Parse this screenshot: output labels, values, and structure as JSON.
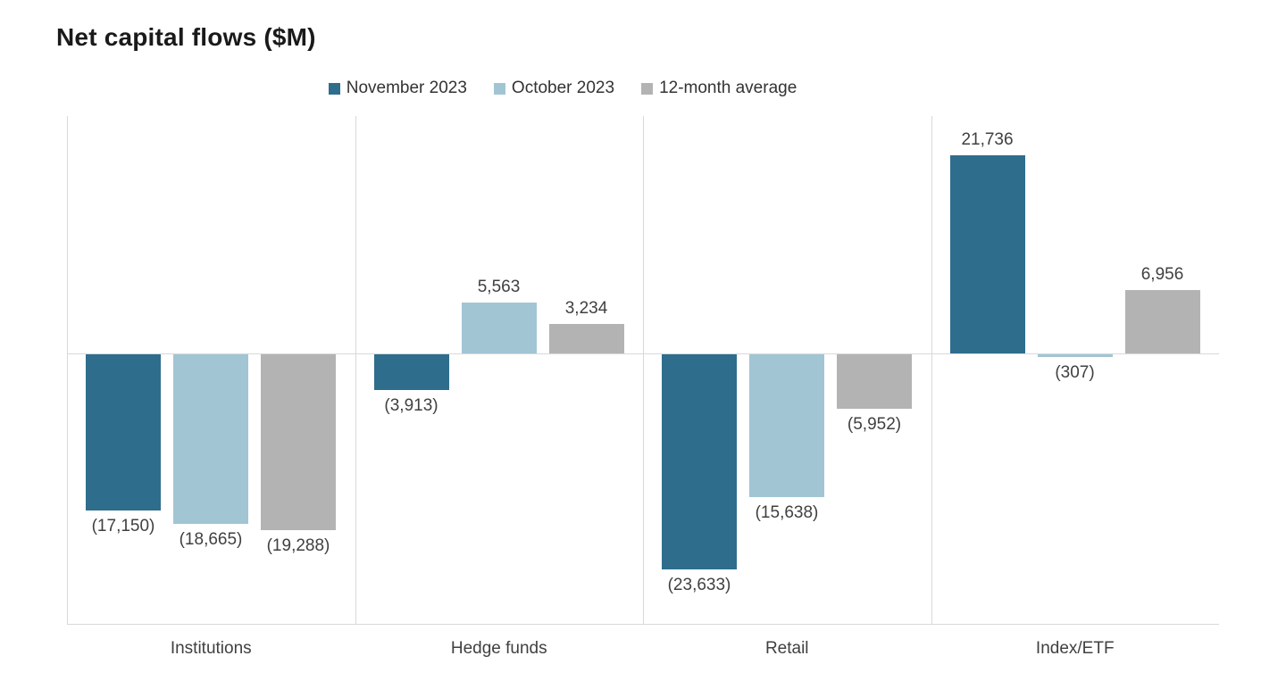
{
  "title": "Net capital flows ($M)",
  "chart_data": {
    "type": "bar",
    "title": "Net capital flows ($M)",
    "categories": [
      "Institutions",
      "Hedge funds",
      "Retail",
      "Index/ETF"
    ],
    "series": [
      {
        "name": "November 2023",
        "color": "#2e6d8c",
        "values": [
          -17150,
          -3913,
          -23633,
          21736
        ],
        "labels": [
          "(17,150)",
          "(3,913)",
          "(23,633)",
          "21,736"
        ]
      },
      {
        "name": "October 2023",
        "color": "#a2c5d3",
        "values": [
          -18665,
          5563,
          -15638,
          -307
        ],
        "labels": [
          "(18,665)",
          "5,563",
          "(15,638)",
          "(307)"
        ]
      },
      {
        "name": "12-month average",
        "color": "#b3b3b3",
        "values": [
          -19288,
          3234,
          -5952,
          6956
        ],
        "labels": [
          "(19,288)",
          "3,234",
          "(5,952)",
          "6,956"
        ]
      }
    ],
    "ylim": [
      -29800,
      26100
    ],
    "value_format": "thousands-comma, negatives in parentheses",
    "grid": "vertical category separators only, light gray",
    "legend_position": "top-center",
    "xlabel": "",
    "ylabel": ""
  },
  "style_tokens": {
    "grid_color": "#d9d9d9",
    "label_color": "#404040",
    "title_color": "#1a1a1a",
    "background": "#ffffff"
  }
}
